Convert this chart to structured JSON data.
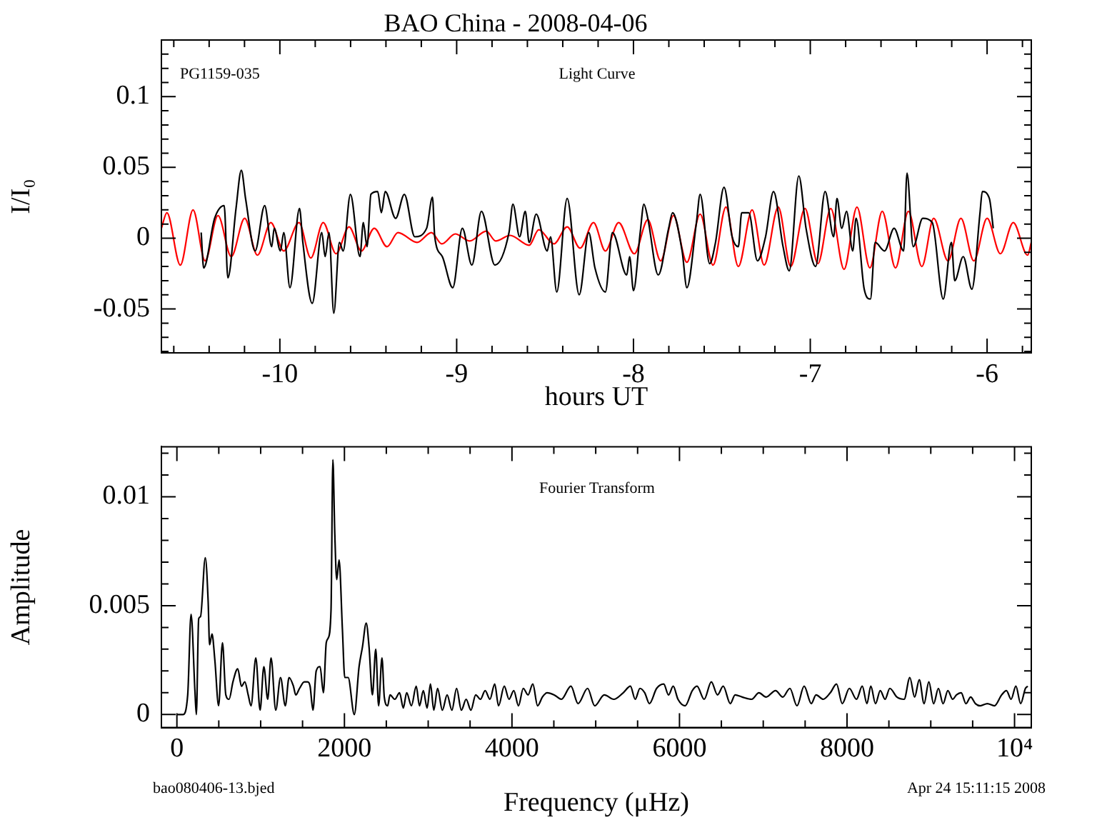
{
  "chart_data": [
    {
      "type": "line",
      "title": "BAO China - 2008-04-06",
      "xlabel": "hours UT",
      "ylabel": "I/I₀",
      "annotations": [
        "PG1159-035",
        "Light Curve"
      ],
      "xlim": [
        -10.67,
        -5.75
      ],
      "ylim": [
        -0.081,
        0.14
      ],
      "xticks": [
        {
          "value": -10.6,
          "label": null
        },
        {
          "value": -10.4,
          "label": null
        },
        {
          "value": -10.2,
          "label": null
        },
        -10,
        {
          "value": -9.8,
          "label": null
        },
        {
          "value": -9.6,
          "label": null
        },
        {
          "value": -9.4,
          "label": null
        },
        {
          "value": -9.2,
          "label": null
        },
        -9,
        {
          "value": -8.8,
          "label": null
        },
        {
          "value": -8.6,
          "label": null
        },
        {
          "value": -8.4,
          "label": null
        },
        {
          "value": -8.2,
          "label": null
        },
        -8,
        {
          "value": -7.8,
          "label": null
        },
        {
          "value": -7.6,
          "label": null
        },
        {
          "value": -7.4,
          "label": null
        },
        {
          "value": -7.2,
          "label": null
        },
        -7,
        {
          "value": -6.8,
          "label": null
        },
        {
          "value": -6.6,
          "label": null
        },
        {
          "value": -6.4,
          "label": null
        },
        {
          "value": -6.2,
          "label": null
        },
        -6,
        {
          "value": -5.8,
          "label": null
        }
      ],
      "yticks": [
        {
          "value": -0.08,
          "label": null
        },
        {
          "value": -0.07,
          "label": null
        },
        {
          "value": -0.06,
          "label": null
        },
        -0.05,
        {
          "value": -0.04,
          "label": null
        },
        {
          "value": -0.03,
          "label": null
        },
        {
          "value": -0.02,
          "label": null
        },
        {
          "value": -0.01,
          "label": null
        },
        0,
        {
          "value": 0.01,
          "label": null
        },
        {
          "value": 0.02,
          "label": null
        },
        {
          "value": 0.03,
          "label": null
        },
        {
          "value": 0.04,
          "label": null
        },
        0.05,
        {
          "value": 0.06,
          "label": null
        },
        {
          "value": 0.07,
          "label": null
        },
        {
          "value": 0.08,
          "label": null
        },
        {
          "value": 0.09,
          "label": null
        },
        0.1,
        {
          "value": 0.11,
          "label": null
        },
        {
          "value": 0.12,
          "label": null
        },
        {
          "value": 0.13,
          "label": null
        }
      ],
      "grid": false,
      "legend": false,
      "marker": "none",
      "line_style": "solid",
      "series": [
        {
          "color": "#000000",
          "x": [
            -10.445,
            -10.431,
            -10.369,
            -10.315,
            -10.294,
            -10.248,
            -10.218,
            -10.194,
            -10.14,
            -10.086,
            -10.046,
            -10.032,
            -9.997,
            -9.978,
            -9.943,
            -9.889,
            -9.87,
            -9.817,
            -9.763,
            -9.744,
            -9.722,
            -9.695,
            -9.663,
            -9.642,
            -9.601,
            -9.547,
            -9.528,
            -9.507,
            -9.485,
            -9.447,
            -9.426,
            -9.404,
            -9.345,
            -9.296,
            -9.237,
            -9.17,
            -9.137,
            -9.124,
            -9.081,
            -9.022,
            -8.968,
            -8.914,
            -8.86,
            -8.784,
            -8.704,
            -8.682,
            -8.644,
            -8.612,
            -8.59,
            -8.55,
            -8.488,
            -8.469,
            -8.434,
            -8.375,
            -8.307,
            -8.253,
            -8.218,
            -8.159,
            -8.119,
            -8.038,
            -8.022,
            -8,
            -7.962,
            -7.941,
            -7.919,
            -7.86,
            -7.801,
            -7.779,
            -7.725,
            -7.698,
            -7.644,
            -7.623,
            -7.569,
            -7.536,
            -7.488,
            -7.442,
            -7.407,
            -7.388,
            -7.348,
            -7.299,
            -7.253,
            -7.208,
            -7.154,
            -7.119,
            -7.065,
            -7.024,
            -6.97,
            -6.916,
            -6.868,
            -6.849,
            -6.822,
            -6.795,
            -6.76,
            -6.741,
            -6.695,
            -6.66,
            -6.633,
            -6.58,
            -6.526,
            -6.472,
            -6.453,
            -6.418,
            -6.364,
            -6.31,
            -6.248,
            -6.202,
            -6.183,
            -6.135,
            -6.086,
            -6.04,
            -6.027,
            -5.987,
            -5.965
          ],
          "values": [
            0.004,
            -0.021,
            0.014,
            0.023,
            -0.028,
            0.021,
            0.048,
            0.028,
            -0.009,
            0.023,
            -0.006,
            0.007,
            -0.009,
            0.004,
            -0.035,
            0.021,
            -0.003,
            -0.046,
            0.004,
            -0.013,
            0.004,
            -0.053,
            -0.003,
            -0.009,
            0.031,
            -0.013,
            0.011,
            -0.006,
            0.031,
            0.033,
            0.018,
            0.033,
            0.014,
            0.031,
            0.001,
            0.007,
            0.029,
            0.001,
            -0.013,
            -0.035,
            0.007,
            -0.019,
            0.019,
            -0.019,
            0.004,
            0.024,
            0.001,
            0.019,
            -0.003,
            0.017,
            -0.009,
            0.001,
            -0.038,
            0.028,
            -0.04,
            0.004,
            -0.021,
            -0.038,
            0.004,
            -0.026,
            -0.013,
            -0.037,
            0.004,
            0.024,
            0.014,
            -0.026,
            0.007,
            0.018,
            -0.009,
            -0.035,
            0.011,
            0.031,
            -0.018,
            -0.003,
            0.036,
            0.001,
            -0.006,
            0.018,
            0.018,
            -0.016,
            0.001,
            0.033,
            -0.006,
            -0.023,
            0.044,
            0.007,
            -0.02,
            0.033,
            0.001,
            0.028,
            0.007,
            0.019,
            -0.009,
            0.014,
            -0.036,
            -0.043,
            -0.003,
            -0.009,
            0.007,
            -0.009,
            0.046,
            -0.006,
            0.014,
            0.011,
            -0.043,
            -0.003,
            -0.03,
            -0.013,
            -0.036,
            0.018,
            0.033,
            0.028,
            0.007
          ]
        },
        {
          "color": "#ff0000",
          "x": [
            -10.67,
            -10.639,
            -10.563,
            -10.491,
            -10.423,
            -10.35,
            -10.275,
            -10.199,
            -10.127,
            -10.051,
            -9.978,
            -9.892,
            -9.825,
            -9.755,
            -9.682,
            -9.609,
            -9.539,
            -9.466,
            -9.394,
            -9.332,
            -9.224,
            -9.143,
            -9.084,
            -9.008,
            -8.927,
            -8.833,
            -8.779,
            -8.698,
            -8.59,
            -8.536,
            -8.45,
            -8.375,
            -8.302,
            -8.226,
            -8.159,
            -8.084,
            -7.995,
            -7.919,
            -7.846,
            -7.774,
            -7.698,
            -7.623,
            -7.55,
            -7.477,
            -7.407,
            -7.329,
            -7.261,
            -7.181,
            -7.111,
            -7.03,
            -6.957,
            -6.884,
            -6.809,
            -6.736,
            -6.663,
            -6.593,
            -6.518,
            -6.445,
            -6.369,
            -6.302,
            -6.221,
            -6.148,
            -6.075,
            -6,
            -5.925,
            -5.852,
            -5.771,
            -5.75
          ],
          "values": [
            0.007,
            0.018,
            -0.019,
            0.02,
            -0.016,
            0.016,
            -0.013,
            0.014,
            -0.012,
            0.011,
            -0.009,
            0.011,
            -0.014,
            0.011,
            -0.011,
            0.008,
            -0.009,
            0.007,
            -0.006,
            0.004,
            -0.003,
            0.004,
            -0.004,
            0.003,
            -0.002,
            0.005,
            -0.002,
            0.002,
            -0.005,
            0.006,
            -0.004,
            0.008,
            -0.007,
            0.011,
            -0.009,
            0.011,
            -0.011,
            0.013,
            -0.016,
            0.016,
            -0.017,
            0.017,
            -0.019,
            0.022,
            -0.02,
            0.02,
            -0.019,
            0.022,
            -0.02,
            0.021,
            -0.018,
            0.021,
            -0.022,
            0.022,
            -0.021,
            0.019,
            -0.021,
            0.019,
            -0.02,
            0.014,
            -0.016,
            0.014,
            -0.016,
            0.014,
            -0.011,
            0.011,
            -0.012,
            -0.003
          ]
        }
      ]
    },
    {
      "type": "line",
      "xlabel": "Frequency (μHz)",
      "ylabel": "Amplitude",
      "annotations": [
        "Fourier Transform",
        "bao080406-13.bjed",
        "Apr 24 15:11:15 2008"
      ],
      "xlim": [
        -185,
        10200
      ],
      "ylim": [
        -0.0006,
        0.0123
      ],
      "xticks": [
        0,
        {
          "value": 500,
          "label": null
        },
        {
          "value": 1000,
          "label": null
        },
        {
          "value": 1500,
          "label": null
        },
        2000,
        {
          "value": 2500,
          "label": null
        },
        {
          "value": 3000,
          "label": null
        },
        {
          "value": 3500,
          "label": null
        },
        4000,
        {
          "value": 4500,
          "label": null
        },
        {
          "value": 5000,
          "label": null
        },
        {
          "value": 5500,
          "label": null
        },
        6000,
        {
          "value": 6500,
          "label": null
        },
        {
          "value": 7000,
          "label": null
        },
        {
          "value": 7500,
          "label": null
        },
        8000,
        {
          "value": 8500,
          "label": null
        },
        {
          "value": 9000,
          "label": null
        },
        {
          "value": 9500,
          "label": null
        },
        {
          "value": 10000,
          "label": "10⁴"
        }
      ],
      "yticks": [
        0,
        {
          "value": 0.001,
          "label": null
        },
        {
          "value": 0.002,
          "label": null
        },
        {
          "value": 0.003,
          "label": null
        },
        {
          "value": 0.004,
          "label": null
        },
        0.005,
        {
          "value": 0.006,
          "label": null
        },
        {
          "value": 0.007,
          "label": null
        },
        {
          "value": 0.008,
          "label": null
        },
        {
          "value": 0.009,
          "label": null
        },
        0.01,
        {
          "value": 0.011,
          "label": null
        },
        {
          "value": 0.012,
          "label": null
        }
      ],
      "grid": false,
      "legend": false,
      "marker": "none",
      "line_style": "solid",
      "series": [
        {
          "color": "#000000",
          "x": [
            4,
            72,
            129,
            169,
            215,
            232,
            260,
            282,
            339,
            373,
            390,
            419,
            453,
            498,
            544,
            584,
            623,
            669,
            726,
            771,
            811,
            851,
            885,
            942,
            993,
            1038,
            1084,
            1124,
            1180,
            1237,
            1294,
            1339,
            1391,
            1419,
            1464,
            1521,
            1561,
            1590,
            1624,
            1663,
            1709,
            1749,
            1783,
            1805,
            1840,
            1862,
            1885,
            1908,
            1936,
            1976,
            2004,
            2044,
            2118,
            2175,
            2215,
            2260,
            2294,
            2334,
            2374,
            2408,
            2448,
            2476,
            2516,
            2544,
            2601,
            2658,
            2703,
            2743,
            2800,
            2857,
            2896,
            2942,
            2987,
            3027,
            3067,
            3112,
            3169,
            3226,
            3283,
            3339,
            3396,
            3453,
            3510,
            3567,
            3624,
            3680,
            3737,
            3794,
            3840,
            3908,
            3965,
            4022,
            4078,
            4135,
            4192,
            4249,
            4306,
            4363,
            4419,
            4505,
            4590,
            4704,
            4789,
            4903,
            4988,
            5102,
            5215,
            5329,
            5414,
            5471,
            5528,
            5585,
            5641,
            5727,
            5812,
            5869,
            5925,
            5982,
            6068,
            6153,
            6209,
            6295,
            6380,
            6454,
            6522,
            6607,
            6664,
            6749,
            6863,
            6948,
            7034,
            7147,
            7233,
            7318,
            7403,
            7488,
            7574,
            7630,
            7716,
            7801,
            7875,
            7943,
            8028,
            8113,
            8182,
            8238,
            8284,
            8340,
            8397,
            8454,
            8511,
            8596,
            8682,
            8750,
            8807,
            8863,
            8920,
            8977,
            9034,
            9091,
            9147,
            9204,
            9261,
            9306,
            9363,
            9420,
            9476,
            9533,
            9590,
            9675,
            9760,
            9846,
            9903,
            9959,
            10016,
            10073,
            10130,
            10158
          ],
          "values": [
            0,
            0,
            0.0009,
            0.0046,
            0.0011,
            0,
            0.0044,
            0.0045,
            0.0072,
            0.0052,
            0.0032,
            0.0037,
            0.0025,
            0.0004,
            0.0033,
            0.0009,
            0.0007,
            0.0015,
            0.0021,
            0.0013,
            0.0015,
            0.0009,
            0.0004,
            0.0026,
            0.0002,
            0.0022,
            0.0007,
            0.0026,
            0.0002,
            0.0017,
            0.0004,
            0.0017,
            0.0013,
            0.0009,
            0.0012,
            0.0015,
            0.0015,
            0.0013,
            0.0002,
            0.002,
            0.0022,
            0.001,
            0.0033,
            0.0035,
            0.0048,
            0.0117,
            0.0083,
            0.0062,
            0.0071,
            0.0039,
            0.0017,
            0.0017,
            0,
            0.0022,
            0.0031,
            0.0042,
            0.0031,
            0.0009,
            0.003,
            0.0004,
            0.0026,
            0.0008,
            0.0004,
            0.0009,
            0.0007,
            0.001,
            0.0003,
            0.001,
            0.0004,
            0.0013,
            0.0004,
            0.0011,
            0.0003,
            0.0014,
            0.0002,
            0.0012,
            0.0002,
            0.0009,
            0.0002,
            0.0012,
            0.0002,
            0.0007,
            0.0002,
            0.0009,
            0.0007,
            0.0011,
            0.0007,
            0.0014,
            0.0004,
            0.0013,
            0.0007,
            0.0011,
            0.0004,
            0.0012,
            0.0009,
            0.0014,
            0.0004,
            0.0008,
            0.001,
            0.0009,
            0.0007,
            0.0013,
            0.0005,
            0.0012,
            0.0004,
            0.0009,
            0.0007,
            0.001,
            0.0013,
            0.0007,
            0.0012,
            0.001,
            0.0005,
            0.0012,
            0.0014,
            0.0009,
            0.0013,
            0.0007,
            0.0004,
            0.0011,
            0.0013,
            0.0007,
            0.0015,
            0.0009,
            0.0013,
            0.0005,
            0.0009,
            0.0008,
            0.0007,
            0.001,
            0.0008,
            0.0011,
            0.0008,
            0.0012,
            0.0004,
            0.0013,
            0.0005,
            0.0009,
            0.0007,
            0.001,
            0.0014,
            0.0005,
            0.0012,
            0.0007,
            0.0013,
            0.0005,
            0.0013,
            0.0005,
            0.0011,
            0.0007,
            0.0012,
            0.0008,
            0.0007,
            0.0017,
            0.0008,
            0.0016,
            0.0005,
            0.0015,
            0.0005,
            0.0012,
            0.0005,
            0.0011,
            0.0007,
            0.0009,
            0.001,
            0.0005,
            0.0008,
            0.0005,
            0.0004,
            0.0005,
            0.0004,
            0.0009,
            0.0011,
            0.0007,
            0.0013,
            0.0005,
            0.0012,
            0.0013
          ]
        }
      ]
    }
  ]
}
